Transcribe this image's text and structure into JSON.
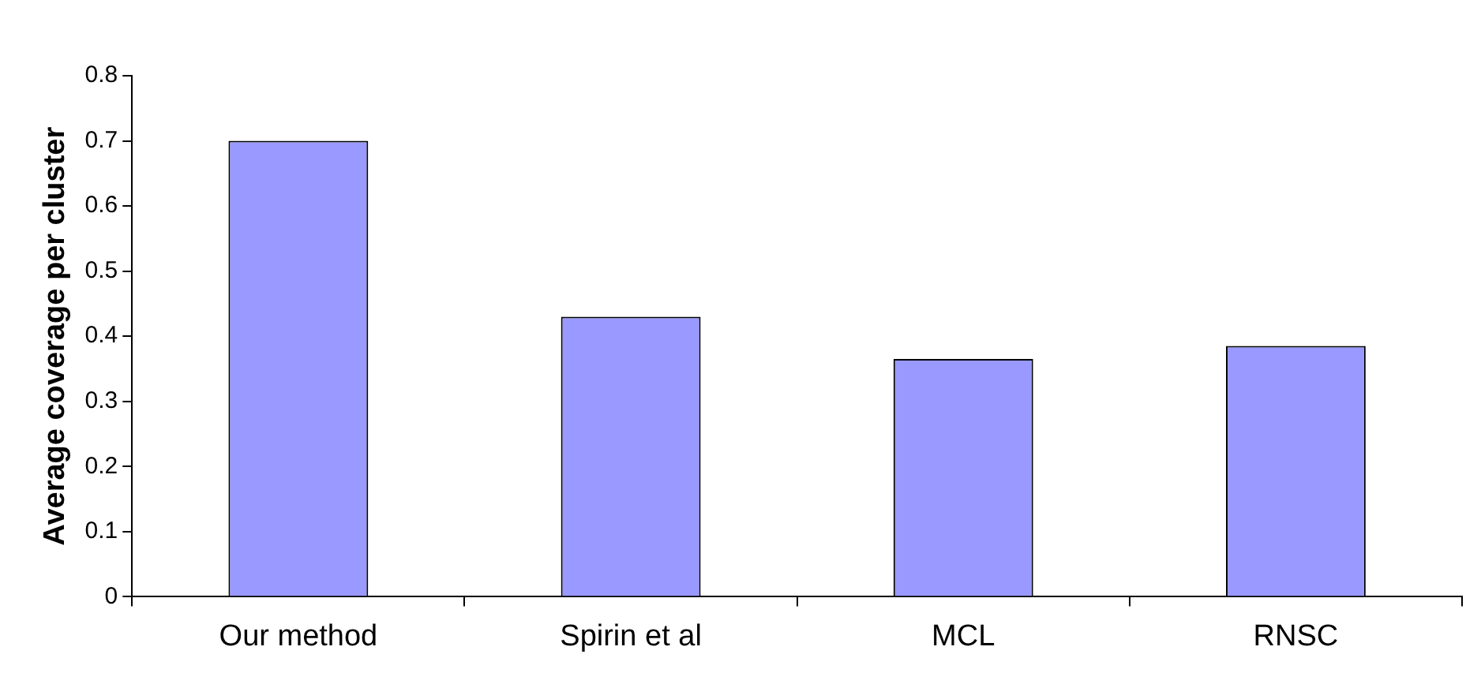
{
  "chart_data": {
    "type": "bar",
    "ylabel": "Average coverage per cluster",
    "categories": [
      "Our method",
      "Spirin et al",
      "MCL",
      "RNSC"
    ],
    "values": [
      0.7,
      0.43,
      0.365,
      0.385
    ],
    "color": "#9999ff",
    "ylim": [
      0,
      0.8
    ],
    "yticks": [
      0,
      0.1,
      0.2,
      0.3,
      0.4,
      0.5,
      0.6,
      0.7,
      0.8
    ],
    "grid": false,
    "legend": false
  }
}
